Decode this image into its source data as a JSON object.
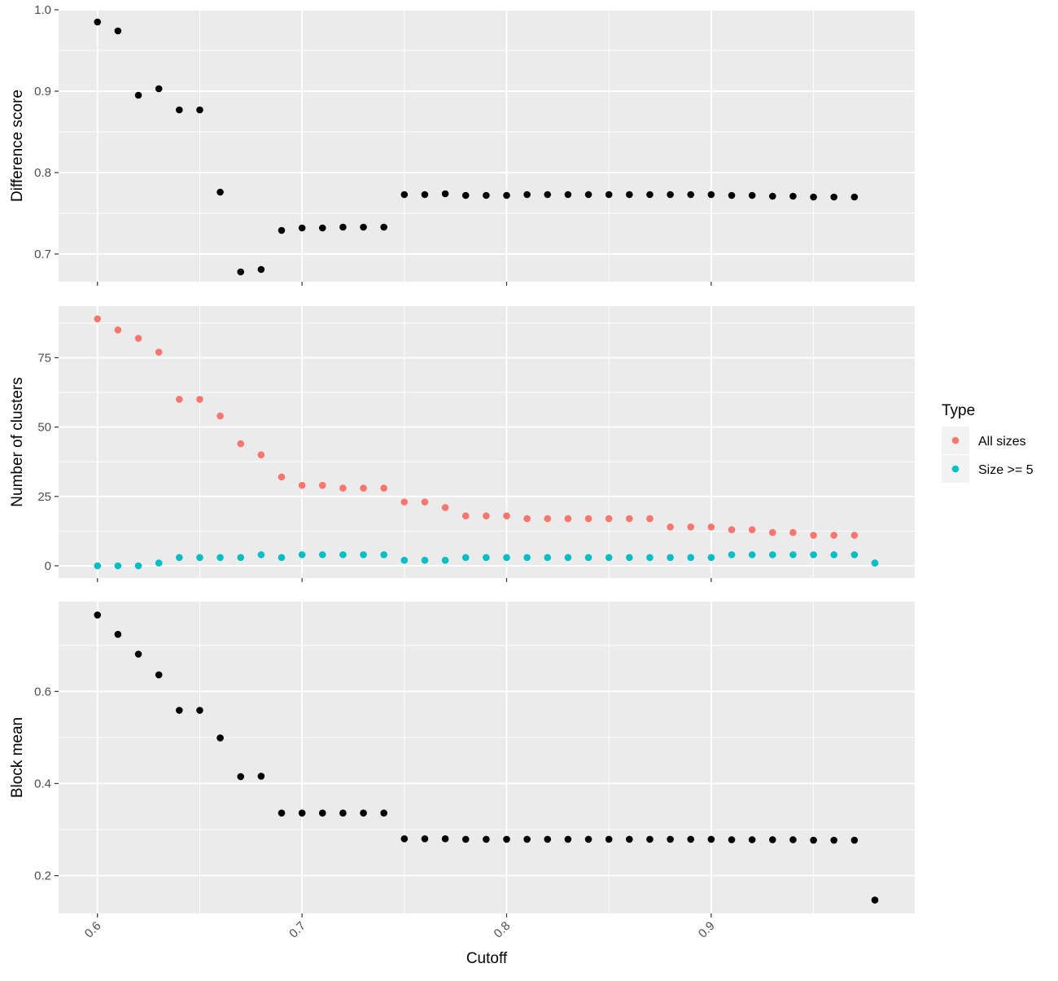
{
  "chart_data": {
    "type": "scatter",
    "x_axis": {
      "label": "Cutoff",
      "range": [
        0.581,
        0.9995
      ],
      "ticks": [
        0.6,
        0.7,
        0.8,
        0.9
      ],
      "tick_labels": [
        "0.6",
        "0.7",
        "0.8",
        "0.9"
      ],
      "minor_ticks": [
        0.65,
        0.75,
        0.85,
        0.95
      ]
    },
    "x": [
      0.6,
      0.61,
      0.62,
      0.63,
      0.64,
      0.65,
      0.66,
      0.67,
      0.68,
      0.69,
      0.7,
      0.71,
      0.72,
      0.73,
      0.74,
      0.75,
      0.76,
      0.77,
      0.78,
      0.79,
      0.8,
      0.81,
      0.82,
      0.83,
      0.84,
      0.85,
      0.86,
      0.87,
      0.88,
      0.89,
      0.9,
      0.91,
      0.92,
      0.93,
      0.94,
      0.95,
      0.96,
      0.97,
      0.98
    ],
    "panels": [
      {
        "ylabel": "Difference score",
        "ylim": [
          0.666,
          1.0
        ],
        "ticks": [
          0.7,
          0.8,
          0.9,
          1.0
        ],
        "tick_labels": [
          "0.7",
          "0.8",
          "0.9",
          "1.0"
        ],
        "minor_ticks": [
          0.75,
          0.85,
          0.95
        ],
        "series": [
          {
            "color": "#000000",
            "values": [
              0.985,
              0.974,
              0.895,
              0.903,
              0.877,
              0.877,
              0.776,
              0.678,
              0.681,
              0.729,
              0.732,
              0.732,
              0.733,
              0.733,
              0.733,
              0.773,
              0.773,
              0.774,
              0.772,
              0.772,
              0.772,
              0.773,
              0.773,
              0.773,
              0.773,
              0.773,
              0.773,
              0.773,
              0.773,
              0.773,
              0.773,
              0.772,
              0.772,
              0.771,
              0.771,
              0.77,
              0.77,
              0.77,
              null
            ]
          }
        ]
      },
      {
        "ylabel": "Number of clusters",
        "ylim": [
          -4.4,
          93.6
        ],
        "ticks": [
          0,
          25,
          50,
          75
        ],
        "tick_labels": [
          "0",
          "25",
          "50",
          "75"
        ],
        "minor_ticks": [
          12.5,
          37.5,
          62.5,
          87.5
        ],
        "series": [
          {
            "name": "All sizes",
            "color": "#f8766d",
            "values": [
              89,
              85,
              82,
              77,
              60,
              60,
              54,
              44,
              40,
              32,
              29,
              29,
              28,
              28,
              28,
              23,
              23,
              21,
              18,
              18,
              18,
              17,
              17,
              17,
              17,
              17,
              17,
              17,
              14,
              14,
              14,
              13,
              13,
              12,
              12,
              11,
              11,
              11,
              1
            ]
          },
          {
            "name": "Size >= 5",
            "color": "#00bfc4",
            "values": [
              0,
              0,
              0,
              1,
              3,
              3,
              3,
              3,
              4,
              3,
              4,
              4,
              4,
              4,
              4,
              2,
              2,
              2,
              3,
              3,
              3,
              3,
              3,
              3,
              3,
              3,
              3,
              3,
              3,
              3,
              3,
              4,
              4,
              4,
              4,
              4,
              4,
              4,
              1
            ]
          }
        ]
      },
      {
        "ylabel": "Block mean",
        "ylim": [
          0.118,
          0.795
        ],
        "ticks": [
          0.2,
          0.4,
          0.6
        ],
        "tick_labels": [
          "0.2",
          "0.4",
          "0.6"
        ],
        "minor_ticks": [
          0.3,
          0.5,
          0.7
        ],
        "series": [
          {
            "color": "#000000",
            "values": [
              0.766,
              0.724,
              0.681,
              0.636,
              0.559,
              0.559,
              0.499,
              0.415,
              0.416,
              0.336,
              0.336,
              0.336,
              0.336,
              0.336,
              0.336,
              0.28,
              0.28,
              0.28,
              0.279,
              0.279,
              0.279,
              0.279,
              0.279,
              0.279,
              0.279,
              0.279,
              0.279,
              0.279,
              0.279,
              0.279,
              0.279,
              0.278,
              0.278,
              0.278,
              0.278,
              0.277,
              0.277,
              0.277,
              0.147
            ]
          }
        ]
      }
    ],
    "legend": {
      "title": "Type",
      "position": "right",
      "entries": [
        {
          "label": "All sizes",
          "color": "#f8766d"
        },
        {
          "label": "Size >= 5",
          "color": "#00bfc4"
        }
      ]
    },
    "panel_background": "#ebebeb",
    "grid_color": "#ffffff",
    "grid": true
  }
}
